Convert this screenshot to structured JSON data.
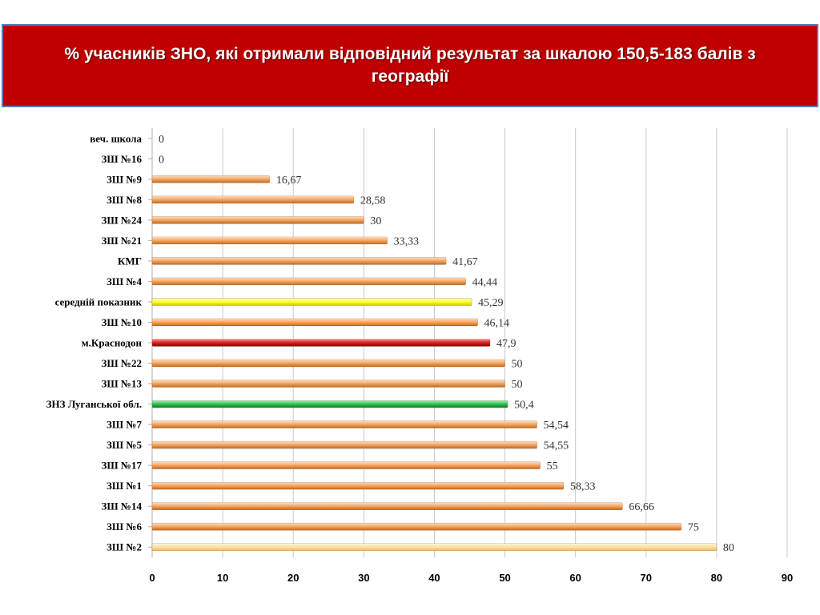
{
  "title": "% учасників ЗНО, які отримали відповідний результат за шкалою 150,5-183 балів з географії",
  "chart_data": {
    "type": "bar",
    "orientation": "horizontal",
    "title": "% учасників ЗНО, які отримали відповідний результат за шкалою 150,5-183 балів з географії",
    "xlim": [
      0,
      90
    ],
    "x_ticks": [
      0,
      10,
      20,
      30,
      40,
      50,
      60,
      70,
      80,
      90
    ],
    "grid": true,
    "categories": [
      "веч. школа",
      "ЗШ №16",
      "ЗШ №9",
      "ЗШ №8",
      "ЗШ №24",
      "ЗШ №21",
      "КМГ",
      "ЗШ №4",
      "середній показник",
      "ЗШ №10",
      "м.Краснодон",
      "ЗШ №22",
      "ЗШ №13",
      "ЗНЗ Луганської обл.",
      "ЗШ №7",
      "ЗШ №5",
      "ЗШ №17",
      "ЗШ №1",
      "ЗШ №14",
      "ЗШ №6",
      "ЗШ №2"
    ],
    "values": [
      0,
      0,
      16.67,
      28.58,
      30,
      33.33,
      41.67,
      44.44,
      45.29,
      46.14,
      47.9,
      50,
      50,
      50.4,
      54.54,
      54.55,
      55,
      58.33,
      66.66,
      75,
      80
    ],
    "value_labels": [
      "0",
      "0",
      "16,67",
      "28,58",
      "30",
      "33,33",
      "41,67",
      "44,44",
      "45,29",
      "46,14",
      "47,9",
      "50",
      "50",
      "50,4",
      "54,54",
      "54,55",
      "55",
      "58,33",
      "66,66",
      "75",
      "80"
    ],
    "bar_colors": {
      "default": "#f4a460",
      "highlight_yellow": "#ffff33",
      "highlight_red": "#d42020",
      "highlight_green": "#2ec050",
      "last": "#ffe0a0"
    },
    "highlighted": {
      "середній показник": "highlight_yellow",
      "м.Краснодон": "highlight_red",
      "ЗНЗ Луганської обл.": "highlight_green",
      "ЗШ №2": "last"
    }
  }
}
